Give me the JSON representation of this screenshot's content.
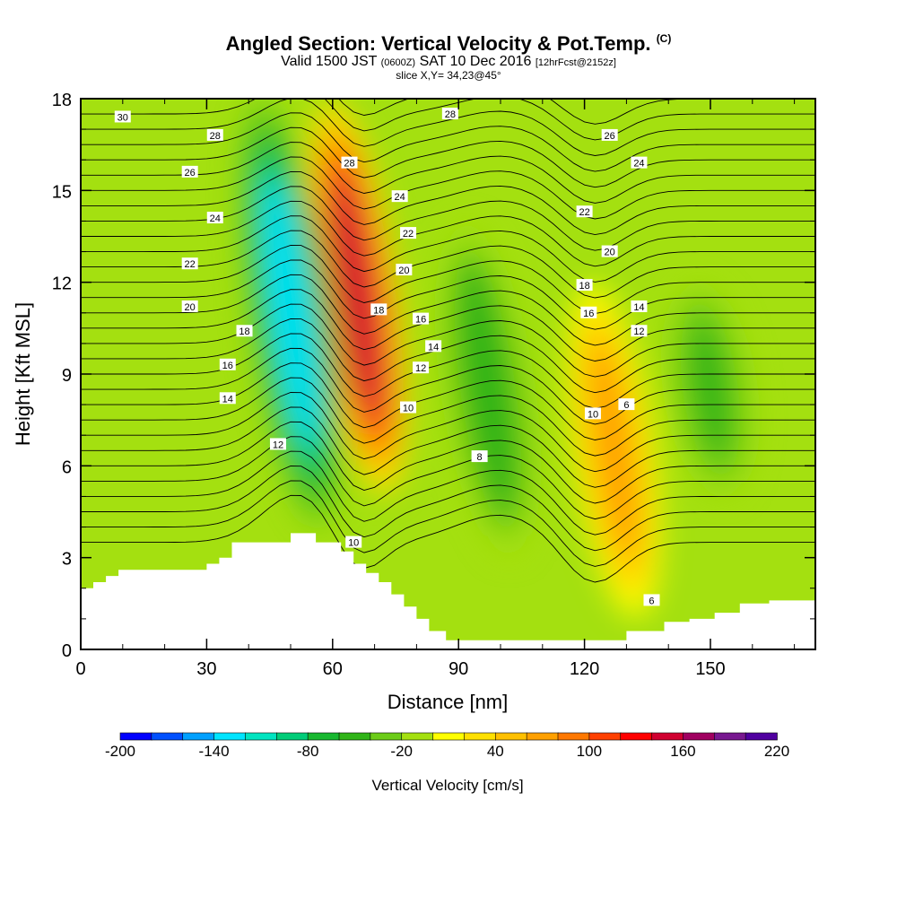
{
  "header": {
    "title": "Angled Section: Vertical Velocity & Pot.Temp.",
    "title_units": "(C)",
    "valid_prefix": "Valid 1500 JST",
    "valid_utc": "(0600Z)",
    "valid_date": "SAT 10 Dec 2016",
    "forecast_info": "[12hrFcst@2152z]",
    "slice_info": "slice X,Y= 34,23@45°"
  },
  "chart_data": {
    "type": "heatmap",
    "xlabel": "Distance [nm]",
    "ylabel": "Height [Kft MSL]",
    "xlim": [
      0,
      175
    ],
    "ylim": [
      0,
      18
    ],
    "x_ticks": [
      0,
      30,
      60,
      90,
      120,
      150
    ],
    "y_ticks": [
      0,
      3,
      6,
      9,
      12,
      15,
      18
    ],
    "colorbar": {
      "label": "Vertical Velocity [cm/s]",
      "tick_labels": [
        "-200",
        "-140",
        "-80",
        "-20",
        "40",
        "100",
        "160",
        "220"
      ],
      "tick_values": [
        -200,
        -140,
        -80,
        -20,
        40,
        100,
        160,
        220
      ],
      "colors": [
        "#0000ff",
        "#0050ff",
        "#00a0ff",
        "#00e4ff",
        "#00e4c0",
        "#00cc78",
        "#18b830",
        "#30b418",
        "#6ccc18",
        "#a4e010",
        "#ffff00",
        "#ffe000",
        "#ffc000",
        "#ffa000",
        "#ff7800",
        "#ff4000",
        "#ff0000",
        "#d00030",
        "#a00060",
        "#781890",
        "#5000a0"
      ]
    },
    "velocity_features": [
      {
        "kind": "updraft",
        "x_center": 66,
        "height_range": [
          5,
          18
        ],
        "peak": 140
      },
      {
        "kind": "downdraft",
        "x_center": 50,
        "height_range": [
          4,
          18
        ],
        "peak": -130
      },
      {
        "kind": "downdraft",
        "x_center": 97,
        "height_range": [
          3,
          14
        ],
        "peak": -60
      },
      {
        "kind": "updraft",
        "x_center": 127,
        "height_range": [
          1,
          12
        ],
        "peak": 60
      },
      {
        "kind": "downdraft",
        "x_center": 150,
        "height_range": [
          5,
          12
        ],
        "peak": -50
      }
    ],
    "terrain": {
      "x": [
        0,
        3,
        3,
        6,
        6,
        9,
        9,
        30,
        30,
        33,
        33,
        36,
        36,
        50,
        50,
        56,
        56,
        62,
        62,
        65,
        65,
        68,
        68,
        71,
        71,
        74,
        74,
        77,
        77,
        80,
        80,
        83,
        83,
        87,
        87,
        130,
        130,
        139,
        139,
        145,
        145,
        151,
        151,
        157,
        157,
        164,
        164,
        175
      ],
      "y": [
        2.0,
        2.0,
        2.2,
        2.2,
        2.4,
        2.4,
        2.6,
        2.6,
        2.8,
        2.8,
        3.0,
        3.0,
        3.5,
        3.5,
        3.8,
        3.8,
        3.5,
        3.5,
        3.2,
        3.2,
        2.8,
        2.8,
        2.5,
        2.5,
        2.2,
        2.2,
        1.8,
        1.8,
        1.4,
        1.4,
        1.0,
        1.0,
        0.6,
        0.6,
        0.3,
        0.3,
        0.6,
        0.6,
        0.9,
        0.9,
        1.0,
        1.0,
        1.2,
        1.2,
        1.5,
        1.5,
        1.6,
        1.6
      ]
    },
    "contour_labels": [
      {
        "text": "30",
        "x": 10,
        "y": 17.4
      },
      {
        "text": "28",
        "x": 32,
        "y": 16.8
      },
      {
        "text": "26",
        "x": 26,
        "y": 15.6
      },
      {
        "text": "24",
        "x": 32,
        "y": 14.1
      },
      {
        "text": "22",
        "x": 26,
        "y": 12.6
      },
      {
        "text": "20",
        "x": 26,
        "y": 11.2
      },
      {
        "text": "18",
        "x": 39,
        "y": 10.4
      },
      {
        "text": "16",
        "x": 35,
        "y": 9.3
      },
      {
        "text": "14",
        "x": 35,
        "y": 8.2
      },
      {
        "text": "12",
        "x": 47,
        "y": 6.7
      },
      {
        "text": "28",
        "x": 64,
        "y": 15.9
      },
      {
        "text": "24",
        "x": 76,
        "y": 14.8
      },
      {
        "text": "22",
        "x": 78,
        "y": 13.6
      },
      {
        "text": "20",
        "x": 77,
        "y": 12.4
      },
      {
        "text": "18",
        "x": 71,
        "y": 11.1
      },
      {
        "text": "16",
        "x": 81,
        "y": 10.8
      },
      {
        "text": "14",
        "x": 84,
        "y": 9.9
      },
      {
        "text": "12",
        "x": 81,
        "y": 9.2
      },
      {
        "text": "10",
        "x": 78,
        "y": 7.9
      },
      {
        "text": "10",
        "x": 65,
        "y": 3.5
      },
      {
        "text": "28",
        "x": 88,
        "y": 17.5
      },
      {
        "text": "8",
        "x": 95,
        "y": 6.3
      },
      {
        "text": "26",
        "x": 126,
        "y": 16.8
      },
      {
        "text": "24",
        "x": 133,
        "y": 15.9
      },
      {
        "text": "22",
        "x": 120,
        "y": 14.3
      },
      {
        "text": "20",
        "x": 126,
        "y": 13.0
      },
      {
        "text": "18",
        "x": 120,
        "y": 11.9
      },
      {
        "text": "16",
        "x": 121,
        "y": 11.0
      },
      {
        "text": "14",
        "x": 133,
        "y": 11.2
      },
      {
        "text": "12",
        "x": 133,
        "y": 10.4
      },
      {
        "text": "10",
        "x": 122,
        "y": 7.7
      },
      {
        "text": "6",
        "x": 130,
        "y": 8.0
      },
      {
        "text": "6",
        "x": 136,
        "y": 1.6
      }
    ]
  }
}
